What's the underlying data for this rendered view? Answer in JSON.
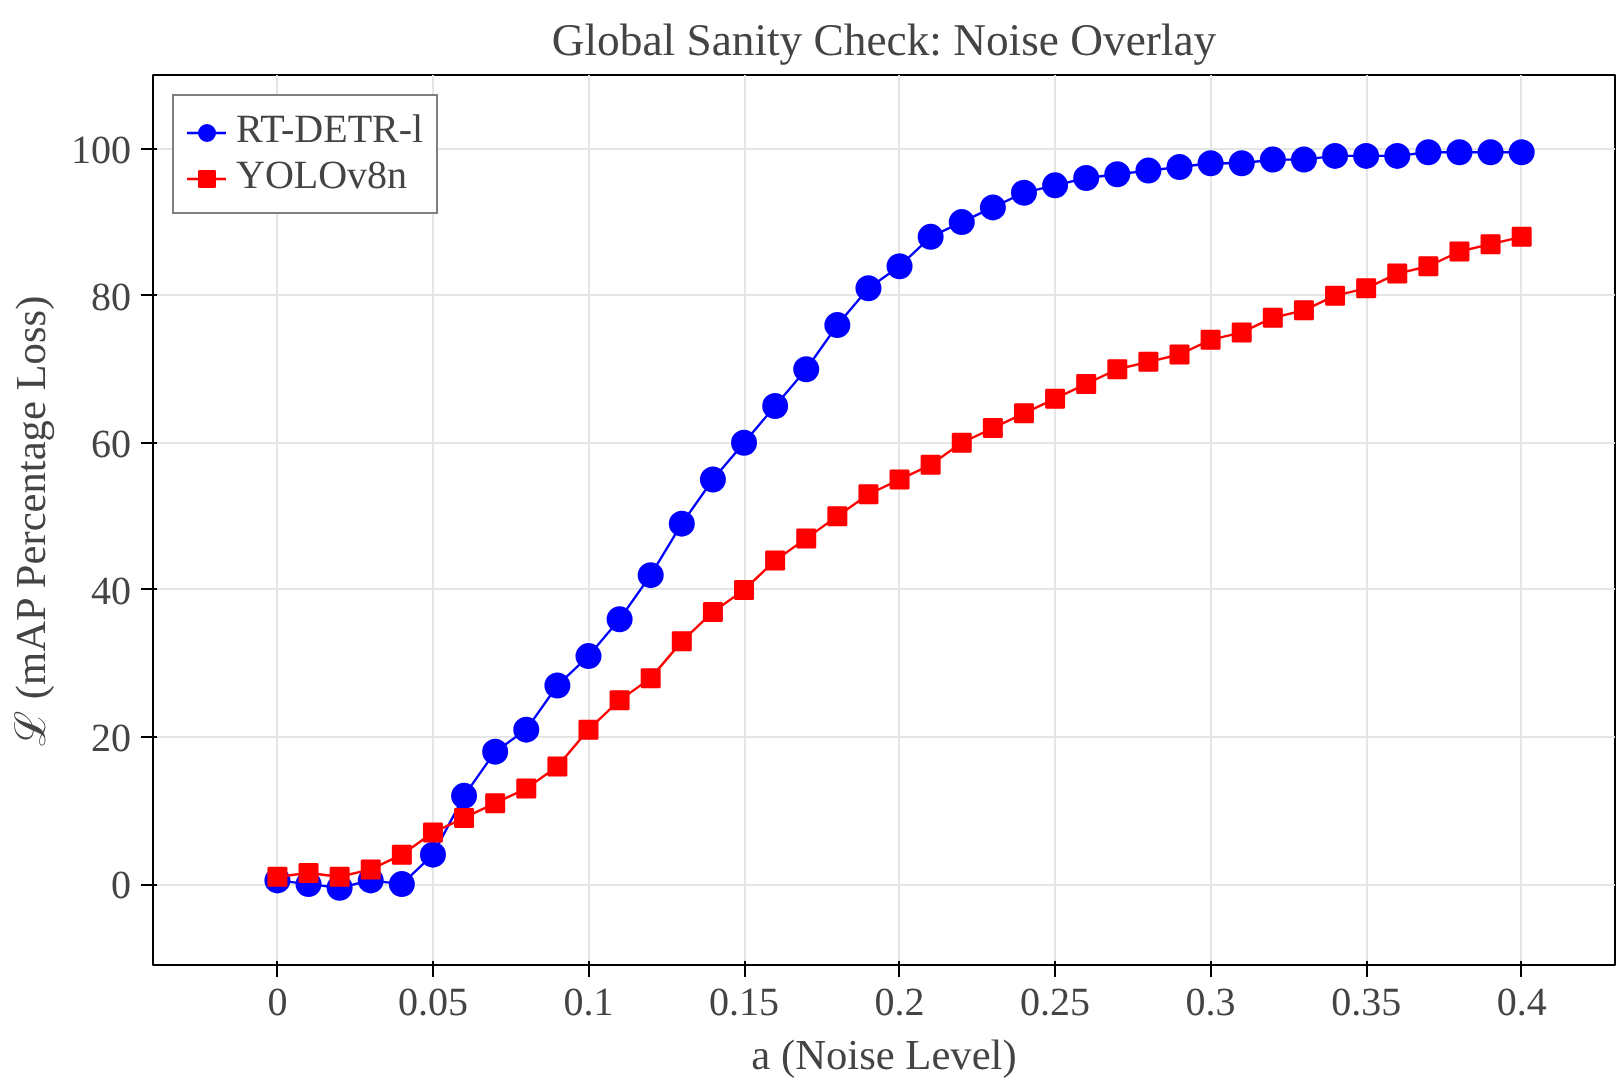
{
  "chart_data": {
    "type": "line",
    "title": "Global Sanity Check: Noise Overlay",
    "xlabel": "a (Noise Level)",
    "ylabel": "ℒ (mAP Percentage Loss)",
    "x": [
      0,
      0.01,
      0.02,
      0.03,
      0.04,
      0.05,
      0.06,
      0.07,
      0.08,
      0.09,
      0.1,
      0.11,
      0.12,
      0.13,
      0.14,
      0.15,
      0.16,
      0.17,
      0.18,
      0.19,
      0.2,
      0.21,
      0.22,
      0.23,
      0.24,
      0.25,
      0.26,
      0.27,
      0.28,
      0.29,
      0.3,
      0.31,
      0.32,
      0.33,
      0.34,
      0.35,
      0.36,
      0.37,
      0.38,
      0.39,
      0.4
    ],
    "series": [
      {
        "name": "RT-DETR-l",
        "color": "#0000ff",
        "marker": "circle",
        "values": [
          0.5,
          0,
          -0.5,
          0.5,
          0,
          4,
          12,
          18,
          21,
          27,
          31,
          36,
          42,
          49,
          55,
          60,
          65,
          70,
          76,
          81,
          84,
          88,
          90,
          92,
          94,
          95,
          96,
          96.5,
          97,
          97.5,
          98,
          98,
          98.5,
          98.5,
          99,
          99,
          99,
          99.5,
          99.5,
          99.5,
          99.5
        ]
      },
      {
        "name": "YOLOv8n",
        "color": "#ff0000",
        "marker": "square",
        "values": [
          1,
          1.5,
          1,
          2,
          4,
          7,
          9,
          11,
          13,
          16,
          21,
          25,
          28,
          33,
          37,
          40,
          44,
          47,
          50,
          53,
          55,
          57,
          60,
          62,
          64,
          66,
          68,
          70,
          71,
          72,
          74,
          75,
          77,
          78,
          80,
          81,
          83,
          84,
          86,
          87,
          88
        ]
      }
    ],
    "xlim": [
      -0.04,
      0.43
    ],
    "ylim": [
      -11,
      110
    ],
    "xticks": [
      0,
      {
        "value": 0.05,
        "label": "0.05"
      },
      {
        "value": 0.1,
        "label": "0.1"
      },
      {
        "value": 0.15,
        "label": "0.15"
      },
      {
        "value": 0.2,
        "label": "0.2"
      },
      {
        "value": 0.25,
        "label": "0.25"
      },
      {
        "value": 0.3,
        "label": "0.3"
      },
      {
        "value": 0.35,
        "label": "0.35"
      },
      {
        "value": 0.4,
        "label": "0.4"
      }
    ],
    "yticks": [
      0,
      20,
      40,
      60,
      80,
      100
    ],
    "grid": true,
    "legend": "top left",
    "line_style": "solid"
  }
}
